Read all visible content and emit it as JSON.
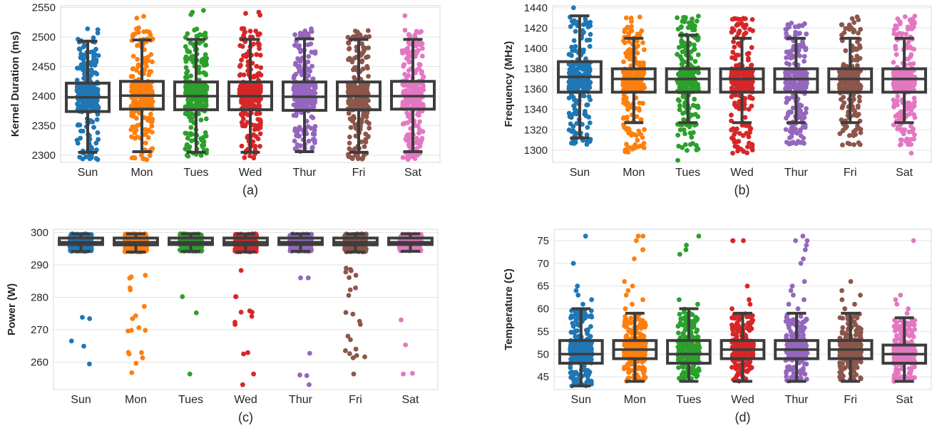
{
  "chart_data": [
    {
      "type": "box",
      "caption": "(a)",
      "ylabel": "Kernel Duration (ms)",
      "ylim": [
        2288,
        2553
      ],
      "yticks": [
        2300,
        2350,
        2400,
        2450,
        2500,
        2550
      ],
      "categories": [
        "Sun",
        "Mon",
        "Tues",
        "Wed",
        "Thur",
        "Fri",
        "Sat"
      ],
      "colors": [
        "#1f77b4",
        "#ff7f0e",
        "#2ca02c",
        "#d62728",
        "#9467bd",
        "#8c564b",
        "#e377c2"
      ],
      "boxes": [
        {
          "whislo": 2305,
          "q1": 2374,
          "med": 2398,
          "q3": 2422,
          "whishi": 2493,
          "min": 2290,
          "max": 2515
        },
        {
          "whislo": 2306,
          "q1": 2378,
          "med": 2401,
          "q3": 2425,
          "whishi": 2495,
          "min": 2292,
          "max": 2518
        },
        {
          "whislo": 2305,
          "q1": 2377,
          "med": 2400,
          "q3": 2424,
          "whishi": 2496,
          "min": 2298,
          "max": 2514
        },
        {
          "whislo": 2305,
          "q1": 2377,
          "med": 2400,
          "q3": 2424,
          "whishi": 2496,
          "min": 2295,
          "max": 2515
        },
        {
          "whislo": 2306,
          "q1": 2376,
          "med": 2399,
          "q3": 2424,
          "whishi": 2497,
          "min": 2301,
          "max": 2515
        },
        {
          "whislo": 2305,
          "q1": 2377,
          "med": 2400,
          "q3": 2424,
          "whishi": 2496,
          "min": 2292,
          "max": 2511
        },
        {
          "whislo": 2306,
          "q1": 2378,
          "med": 2400,
          "q3": 2425,
          "whishi": 2496,
          "min": 2292,
          "max": 2512
        }
      ],
      "outliers": [
        [],
        [
          2535,
          2532
        ],
        [
          2545,
          2542,
          2538
        ],
        [
          2542,
          2540,
          2537
        ],
        [],
        [],
        [
          2536
        ]
      ]
    },
    {
      "type": "box",
      "caption": "(b)",
      "ylabel": "Frequency (MHz)",
      "ylim": [
        1288,
        1442
      ],
      "yticks": [
        1300,
        1320,
        1340,
        1360,
        1380,
        1400,
        1420,
        1440
      ],
      "categories": [
        "Sun",
        "Mon",
        "Tues",
        "Wed",
        "Thur",
        "Fri",
        "Sat"
      ],
      "colors": [
        "#1f77b4",
        "#ff7f0e",
        "#2ca02c",
        "#d62728",
        "#9467bd",
        "#8c564b",
        "#e377c2"
      ],
      "boxes": [
        {
          "whislo": 1312,
          "q1": 1357,
          "med": 1372,
          "q3": 1387,
          "whishi": 1432,
          "min": 1305,
          "max": 1432
        },
        {
          "whislo": 1327,
          "q1": 1357,
          "med": 1370,
          "q3": 1380,
          "whishi": 1410,
          "min": 1297,
          "max": 1432
        },
        {
          "whislo": 1327,
          "q1": 1357,
          "med": 1370,
          "q3": 1380,
          "whishi": 1413,
          "min": 1297,
          "max": 1432
        },
        {
          "whislo": 1327,
          "q1": 1357,
          "med": 1370,
          "q3": 1380,
          "whishi": 1410,
          "min": 1297,
          "max": 1432
        },
        {
          "whislo": 1327,
          "q1": 1357,
          "med": 1370,
          "q3": 1380,
          "whishi": 1410,
          "min": 1305,
          "max": 1425
        },
        {
          "whislo": 1327,
          "q1": 1357,
          "med": 1370,
          "q3": 1380,
          "whishi": 1410,
          "min": 1305,
          "max": 1432
        },
        {
          "whislo": 1327,
          "q1": 1357,
          "med": 1370,
          "q3": 1380,
          "whishi": 1410,
          "min": 1305,
          "max": 1432
        }
      ],
      "outliers": [
        [
          1440
        ],
        [],
        [
          1290
        ],
        [],
        [],
        [],
        [
          1297
        ]
      ]
    },
    {
      "type": "box",
      "caption": "(c)",
      "ylabel": "Power (W)",
      "ylim": [
        251.5,
        301
      ],
      "yticks": [
        260,
        270,
        280,
        290,
        300
      ],
      "categories": [
        "Sun",
        "Mon",
        "Tues",
        "Wed",
        "Thur",
        "Fri",
        "Sat"
      ],
      "colors": [
        "#1f77b4",
        "#ff7f0e",
        "#2ca02c",
        "#d62728",
        "#9467bd",
        "#8c564b",
        "#e377c2"
      ],
      "boxes": [
        {
          "whislo": 294.2,
          "q1": 296.3,
          "med": 297.0,
          "q3": 298.3,
          "whishi": 299.6,
          "min": 294.2,
          "max": 299.6
        },
        {
          "whislo": 294.0,
          "q1": 296.2,
          "med": 297.0,
          "q3": 298.3,
          "whishi": 299.6,
          "min": 294.0,
          "max": 299.6
        },
        {
          "whislo": 294.2,
          "q1": 296.3,
          "med": 297.0,
          "q3": 298.3,
          "whishi": 299.6,
          "min": 294.2,
          "max": 299.6
        },
        {
          "whislo": 294.0,
          "q1": 296.2,
          "med": 297.0,
          "q3": 298.3,
          "whishi": 299.6,
          "min": 294.0,
          "max": 299.6
        },
        {
          "whislo": 294.2,
          "q1": 296.3,
          "med": 297.0,
          "q3": 298.3,
          "whishi": 299.6,
          "min": 294.2,
          "max": 299.6
        },
        {
          "whislo": 294.0,
          "q1": 296.2,
          "med": 297.0,
          "q3": 298.3,
          "whishi": 299.6,
          "min": 294.0,
          "max": 299.6
        },
        {
          "whislo": 294.2,
          "q1": 296.3,
          "med": 297.0,
          "q3": 298.3,
          "whishi": 299.6,
          "min": 293.0,
          "max": 299.6
        }
      ],
      "outliers": [
        [
          273.8,
          273.4,
          266.5,
          264.9,
          259.4
        ],
        [
          286.8,
          286.3,
          285.9,
          282.9,
          282.3,
          277.2,
          274.3,
          273.4,
          270.6,
          269.8,
          269.8,
          269.6,
          263.0,
          262.9,
          262.5,
          261.3,
          259.6,
          256.7
        ],
        [
          280.2,
          275.2,
          256.3
        ],
        [
          288.3,
          280.2,
          280.2,
          275.8,
          275.4,
          275.4,
          274.1,
          272.3,
          271.6,
          262.9,
          262.5,
          256.3,
          253.0
        ],
        [
          286.0,
          286.0,
          262.7,
          256.0,
          255.8,
          253.0
        ],
        [
          289.0,
          288.6,
          288.2,
          287.8,
          286.8,
          286.1,
          282.9,
          282.3,
          280.6,
          275.3,
          274.8,
          272.6,
          271.6,
          268.0,
          266.9,
          264.0,
          263.5,
          262.6,
          262.0,
          261.6,
          261.3,
          256.3
        ],
        [
          273.0,
          265.3,
          256.5,
          256.3
        ]
      ]
    },
    {
      "type": "box",
      "caption": "(d)",
      "ylabel": "Temperature (C)",
      "ylim": [
        42.2,
        77.5
      ],
      "yticks": [
        45,
        50,
        55,
        60,
        65,
        70,
        75
      ],
      "categories": [
        "Sun",
        "Mon",
        "Tues",
        "Wed",
        "Thur",
        "Fri",
        "Sat"
      ],
      "colors": [
        "#1f77b4",
        "#ff7f0e",
        "#2ca02c",
        "#d62728",
        "#9467bd",
        "#8c564b",
        "#e377c2"
      ],
      "boxes": [
        {
          "whislo": 43,
          "q1": 48,
          "med": 50,
          "q3": 53,
          "whishi": 60,
          "min": 43,
          "max": 60
        },
        {
          "whislo": 44,
          "q1": 49,
          "med": 51,
          "q3": 53,
          "whishi": 59,
          "min": 44,
          "max": 59
        },
        {
          "whislo": 44,
          "q1": 48,
          "med": 50,
          "q3": 53,
          "whishi": 60,
          "min": 44,
          "max": 60
        },
        {
          "whislo": 44,
          "q1": 49,
          "med": 51,
          "q3": 53,
          "whishi": 59,
          "min": 44,
          "max": 59
        },
        {
          "whislo": 44,
          "q1": 49,
          "med": 51,
          "q3": 53,
          "whishi": 59,
          "min": 44,
          "max": 59
        },
        {
          "whislo": 44,
          "q1": 49,
          "med": 51,
          "q3": 53,
          "whishi": 59,
          "min": 44,
          "max": 59
        },
        {
          "whislo": 44,
          "q1": 48,
          "med": 50,
          "q3": 52,
          "whishi": 58,
          "min": 44,
          "max": 58
        }
      ],
      "outliers": [
        [
          76,
          70,
          65,
          64,
          63,
          62,
          61
        ],
        [
          76,
          76,
          75,
          73,
          73,
          71,
          66,
          65,
          64,
          63,
          62,
          61,
          60
        ],
        [
          76,
          74,
          73,
          72,
          62,
          61
        ],
        [
          75,
          75,
          75,
          65,
          62,
          61,
          60
        ],
        [
          76,
          75,
          75,
          74,
          73,
          71,
          70,
          66,
          65,
          64,
          63,
          62,
          61,
          60
        ],
        [
          66,
          64,
          63,
          62,
          61,
          60
        ],
        [
          75,
          63,
          62,
          61,
          60,
          59
        ]
      ]
    }
  ]
}
